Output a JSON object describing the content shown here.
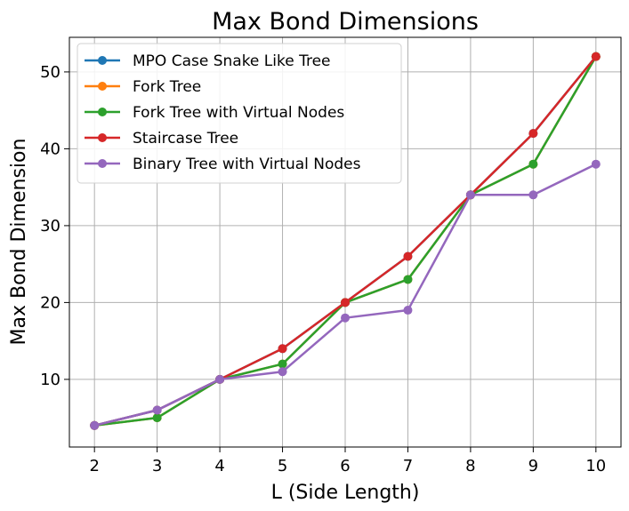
{
  "chart_data": {
    "type": "line",
    "title": "Max Bond Dimensions",
    "xlabel": "L (Side Length)",
    "ylabel": "Max Bond Dimension",
    "x": [
      2,
      3,
      4,
      5,
      6,
      7,
      8,
      9,
      10
    ],
    "xlim": [
      1.6,
      10.4
    ],
    "ylim": [
      1.2,
      54.5
    ],
    "xticks": [
      2,
      3,
      4,
      5,
      6,
      7,
      8,
      9,
      10
    ],
    "yticks": [
      10,
      20,
      30,
      40,
      50
    ],
    "grid": true,
    "legend_position": "top-left",
    "series": [
      {
        "name": "MPO Case Snake Like Tree",
        "color": "#1f77b4",
        "values": [
          4,
          6,
          10,
          14,
          20,
          26,
          34,
          42,
          52
        ]
      },
      {
        "name": "Fork Tree",
        "color": "#ff7f0e",
        "values": [
          4,
          5,
          10,
          12,
          20,
          23,
          34,
          38,
          52
        ]
      },
      {
        "name": "Fork Tree with Virtual Nodes",
        "color": "#2ca02c",
        "values": [
          4,
          5,
          10,
          12,
          20,
          23,
          34,
          38,
          52
        ]
      },
      {
        "name": "Staircase Tree",
        "color": "#d62728",
        "values": [
          4,
          6,
          10,
          14,
          20,
          26,
          34,
          42,
          52
        ]
      },
      {
        "name": "Binary Tree with Virtual Nodes",
        "color": "#9467bd",
        "values": [
          4,
          6,
          10,
          11,
          18,
          19,
          34,
          34,
          38
        ]
      }
    ]
  }
}
